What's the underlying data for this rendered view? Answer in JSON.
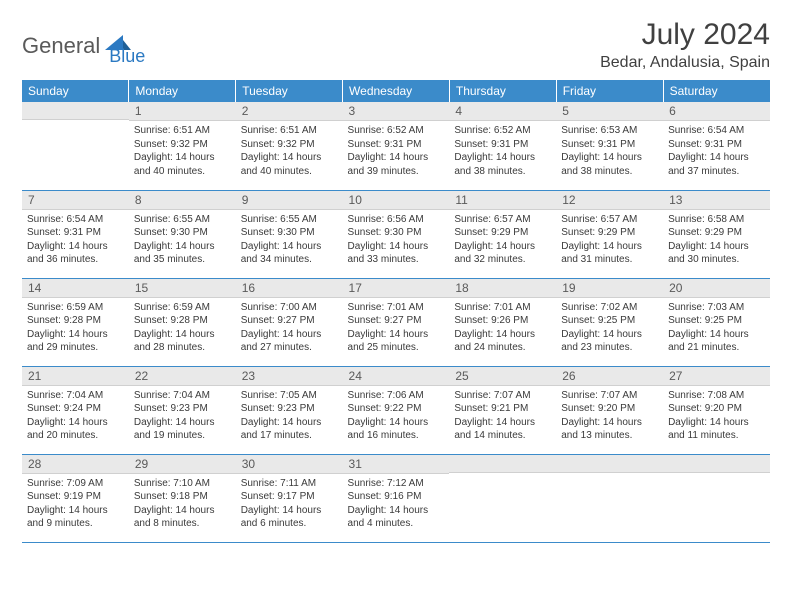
{
  "brand": {
    "part1": "General",
    "part2": "Blue"
  },
  "title": "July 2024",
  "location": "Bedar, Andalusia, Spain",
  "colors": {
    "header_bg": "#3b8bca",
    "header_text": "#ffffff",
    "daynum_bg": "#e9e9e9",
    "rule": "#3b8bca",
    "brand_gray": "#5a5a5a",
    "brand_blue": "#2b79c2"
  },
  "dayHeaders": [
    "Sunday",
    "Monday",
    "Tuesday",
    "Wednesday",
    "Thursday",
    "Friday",
    "Saturday"
  ],
  "weeks": [
    [
      {
        "n": "",
        "sunrise": "",
        "sunset": "",
        "daylight": ""
      },
      {
        "n": "1",
        "sunrise": "6:51 AM",
        "sunset": "9:32 PM",
        "daylight": "14 hours and 40 minutes."
      },
      {
        "n": "2",
        "sunrise": "6:51 AM",
        "sunset": "9:32 PM",
        "daylight": "14 hours and 40 minutes."
      },
      {
        "n": "3",
        "sunrise": "6:52 AM",
        "sunset": "9:31 PM",
        "daylight": "14 hours and 39 minutes."
      },
      {
        "n": "4",
        "sunrise": "6:52 AM",
        "sunset": "9:31 PM",
        "daylight": "14 hours and 38 minutes."
      },
      {
        "n": "5",
        "sunrise": "6:53 AM",
        "sunset": "9:31 PM",
        "daylight": "14 hours and 38 minutes."
      },
      {
        "n": "6",
        "sunrise": "6:54 AM",
        "sunset": "9:31 PM",
        "daylight": "14 hours and 37 minutes."
      }
    ],
    [
      {
        "n": "7",
        "sunrise": "6:54 AM",
        "sunset": "9:31 PM",
        "daylight": "14 hours and 36 minutes."
      },
      {
        "n": "8",
        "sunrise": "6:55 AM",
        "sunset": "9:30 PM",
        "daylight": "14 hours and 35 minutes."
      },
      {
        "n": "9",
        "sunrise": "6:55 AM",
        "sunset": "9:30 PM",
        "daylight": "14 hours and 34 minutes."
      },
      {
        "n": "10",
        "sunrise": "6:56 AM",
        "sunset": "9:30 PM",
        "daylight": "14 hours and 33 minutes."
      },
      {
        "n": "11",
        "sunrise": "6:57 AM",
        "sunset": "9:29 PM",
        "daylight": "14 hours and 32 minutes."
      },
      {
        "n": "12",
        "sunrise": "6:57 AM",
        "sunset": "9:29 PM",
        "daylight": "14 hours and 31 minutes."
      },
      {
        "n": "13",
        "sunrise": "6:58 AM",
        "sunset": "9:29 PM",
        "daylight": "14 hours and 30 minutes."
      }
    ],
    [
      {
        "n": "14",
        "sunrise": "6:59 AM",
        "sunset": "9:28 PM",
        "daylight": "14 hours and 29 minutes."
      },
      {
        "n": "15",
        "sunrise": "6:59 AM",
        "sunset": "9:28 PM",
        "daylight": "14 hours and 28 minutes."
      },
      {
        "n": "16",
        "sunrise": "7:00 AM",
        "sunset": "9:27 PM",
        "daylight": "14 hours and 27 minutes."
      },
      {
        "n": "17",
        "sunrise": "7:01 AM",
        "sunset": "9:27 PM",
        "daylight": "14 hours and 25 minutes."
      },
      {
        "n": "18",
        "sunrise": "7:01 AM",
        "sunset": "9:26 PM",
        "daylight": "14 hours and 24 minutes."
      },
      {
        "n": "19",
        "sunrise": "7:02 AM",
        "sunset": "9:25 PM",
        "daylight": "14 hours and 23 minutes."
      },
      {
        "n": "20",
        "sunrise": "7:03 AM",
        "sunset": "9:25 PM",
        "daylight": "14 hours and 21 minutes."
      }
    ],
    [
      {
        "n": "21",
        "sunrise": "7:04 AM",
        "sunset": "9:24 PM",
        "daylight": "14 hours and 20 minutes."
      },
      {
        "n": "22",
        "sunrise": "7:04 AM",
        "sunset": "9:23 PM",
        "daylight": "14 hours and 19 minutes."
      },
      {
        "n": "23",
        "sunrise": "7:05 AM",
        "sunset": "9:23 PM",
        "daylight": "14 hours and 17 minutes."
      },
      {
        "n": "24",
        "sunrise": "7:06 AM",
        "sunset": "9:22 PM",
        "daylight": "14 hours and 16 minutes."
      },
      {
        "n": "25",
        "sunrise": "7:07 AM",
        "sunset": "9:21 PM",
        "daylight": "14 hours and 14 minutes."
      },
      {
        "n": "26",
        "sunrise": "7:07 AM",
        "sunset": "9:20 PM",
        "daylight": "14 hours and 13 minutes."
      },
      {
        "n": "27",
        "sunrise": "7:08 AM",
        "sunset": "9:20 PM",
        "daylight": "14 hours and 11 minutes."
      }
    ],
    [
      {
        "n": "28",
        "sunrise": "7:09 AM",
        "sunset": "9:19 PM",
        "daylight": "14 hours and 9 minutes."
      },
      {
        "n": "29",
        "sunrise": "7:10 AM",
        "sunset": "9:18 PM",
        "daylight": "14 hours and 8 minutes."
      },
      {
        "n": "30",
        "sunrise": "7:11 AM",
        "sunset": "9:17 PM",
        "daylight": "14 hours and 6 minutes."
      },
      {
        "n": "31",
        "sunrise": "7:12 AM",
        "sunset": "9:16 PM",
        "daylight": "14 hours and 4 minutes."
      },
      {
        "n": "",
        "sunrise": "",
        "sunset": "",
        "daylight": ""
      },
      {
        "n": "",
        "sunrise": "",
        "sunset": "",
        "daylight": ""
      },
      {
        "n": "",
        "sunrise": "",
        "sunset": "",
        "daylight": ""
      }
    ]
  ],
  "labels": {
    "sunrise": "Sunrise:",
    "sunset": "Sunset:",
    "daylight": "Daylight:"
  }
}
